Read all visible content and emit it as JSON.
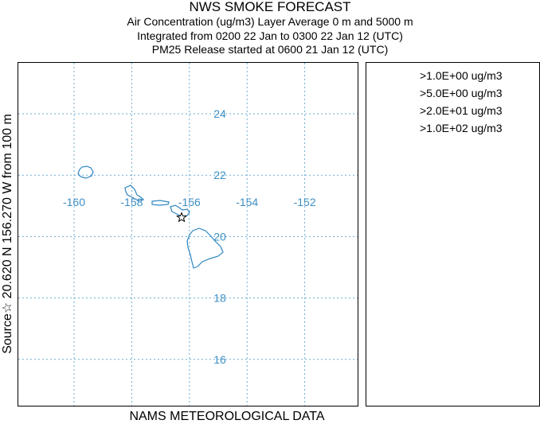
{
  "header": {
    "title": "NWS SMOKE FORECAST",
    "line2": "Air Concentration (ug/m3) Layer Average    0 m and  5000 m",
    "line3": "Integrated from 0200 22 Jan to 0300 22 Jan 12 (UTC)",
    "line4": "PM25 Release started at 0600 21 Jan 12 (UTC)"
  },
  "side_label": "Source☆ 20.620  N 156.270  W     from   100 m",
  "bottom_label": "NAMS METEOROLOGICAL DATA",
  "legend": {
    "items": [
      ">1.0E+00 ug/m3",
      ">5.0E+00 ug/m3",
      ">2.0E+01 ug/m3",
      ">1.0E+02 ug/m3"
    ]
  },
  "map": {
    "lon_ticks": [
      {
        "label": "-160",
        "value": -160
      },
      {
        "label": "-158",
        "value": -158
      },
      {
        "label": "-156",
        "value": -156
      },
      {
        "label": "-154",
        "value": -154
      },
      {
        "label": "-152",
        "value": -152
      }
    ],
    "lat_ticks": [
      {
        "label": "24",
        "value": 24
      },
      {
        "label": "22",
        "value": 22
      },
      {
        "label": "20",
        "value": 20
      },
      {
        "label": "18",
        "value": 18
      },
      {
        "label": "16",
        "value": 16
      }
    ],
    "source": {
      "lat": 20.62,
      "lon": -156.27
    },
    "colors": {
      "grid": "#6aaed6",
      "coast": "#2e86c1",
      "labels": "#3d8fc4"
    }
  }
}
